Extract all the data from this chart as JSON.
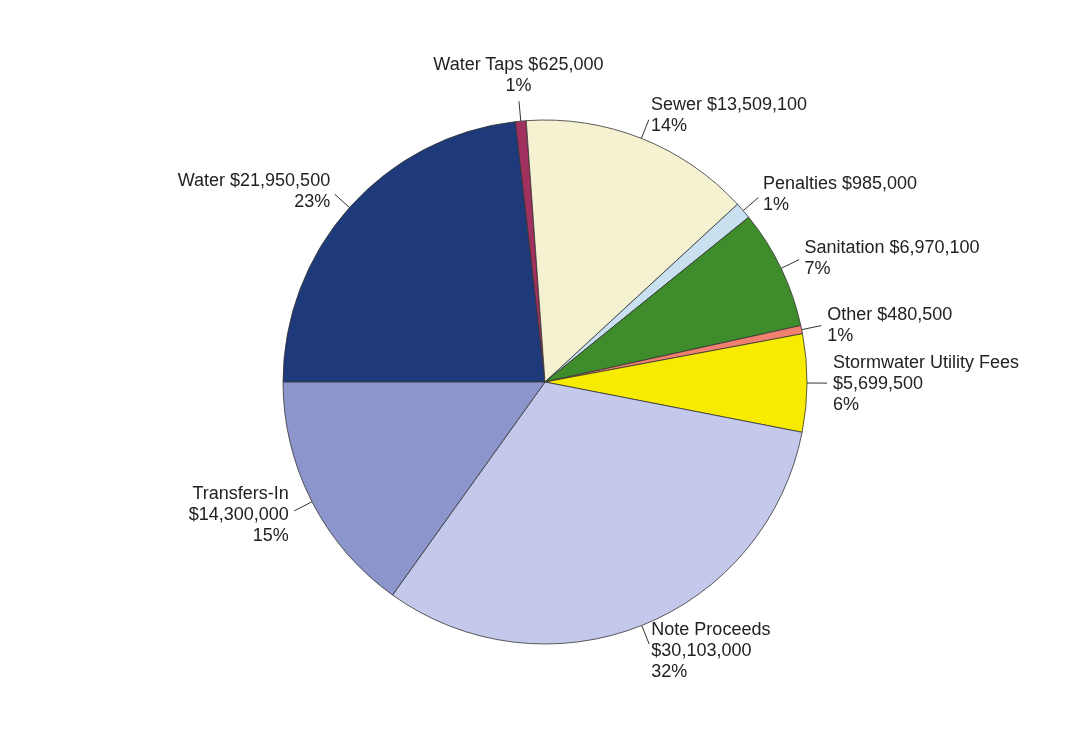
{
  "chart_data": {
    "type": "pie",
    "categories": [
      "Water",
      "Water Taps",
      "Sewer",
      "Penalties",
      "Sanitation",
      "Other",
      "Stormwater Utility Fees",
      "Note Proceeds",
      "Transfers-In"
    ],
    "values": [
      21950500,
      625000,
      13509100,
      985000,
      6970100,
      480500,
      5699500,
      30103000,
      14300000
    ],
    "value_labels": [
      "$21,950,500\n23%",
      "$625,000\n1%",
      "$13,509,100\n14%",
      "$985,000\n1%",
      "$6,970,100\n7%",
      "$480,500\n1%",
      "$5,699,500\n6%",
      "$30,103,000\n32%",
      "$14,300,000\n15%"
    ],
    "colors": [
      "#1f3a7a",
      "#a0305e",
      "#f5f2d2",
      "#c9e0f0",
      "#3e8c2c",
      "#f08070",
      "#f7ec00",
      "#c4c8ea",
      "#8c96cc"
    ],
    "legend": false
  }
}
